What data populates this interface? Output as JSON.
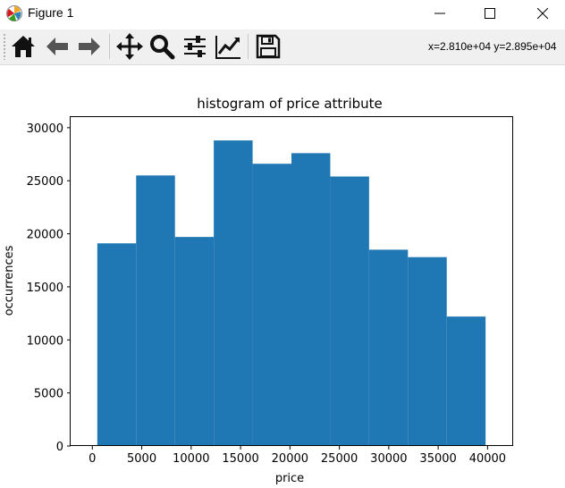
{
  "window": {
    "title": "Figure 1",
    "controls": {
      "minimize_icon": "minimize-icon",
      "maximize_icon": "maximize-icon",
      "close_icon": "close-icon"
    }
  },
  "toolbar": {
    "buttons": [
      {
        "name": "home-button",
        "icon": "home-icon"
      },
      {
        "name": "back-button",
        "icon": "arrow-left-icon"
      },
      {
        "name": "forward-button",
        "icon": "arrow-right-icon"
      },
      {
        "name": "pan-button",
        "icon": "move-icon"
      },
      {
        "name": "zoom-button",
        "icon": "magnifier-icon"
      },
      {
        "name": "subplots-button",
        "icon": "sliders-icon"
      },
      {
        "name": "edit-axes-button",
        "icon": "line-chart-icon"
      },
      {
        "name": "save-button",
        "icon": "floppy-icon"
      }
    ],
    "coordinates": "x=2.810e+04 y=2.895e+04"
  },
  "colors": {
    "bar": "#1f77b4",
    "toolbar_bg": "#f0f0f0"
  },
  "chart_data": {
    "type": "bar",
    "title": "histogram of price attribute",
    "xlabel": "price",
    "ylabel": "occurrences",
    "bin_edges": [
      500,
      4430,
      8360,
      12290,
      16220,
      20150,
      24080,
      28010,
      31940,
      35870,
      39800
    ],
    "values": [
      19100,
      25500,
      19700,
      28800,
      26600,
      27600,
      25400,
      18500,
      17800,
      12200
    ],
    "xlim": [
      -2200,
      42500
    ],
    "ylim": [
      0,
      31000
    ],
    "xticks": [
      0,
      5000,
      10000,
      15000,
      20000,
      25000,
      30000,
      35000,
      40000
    ],
    "yticks": [
      0,
      5000,
      10000,
      15000,
      20000,
      25000,
      30000
    ],
    "grid": false
  }
}
